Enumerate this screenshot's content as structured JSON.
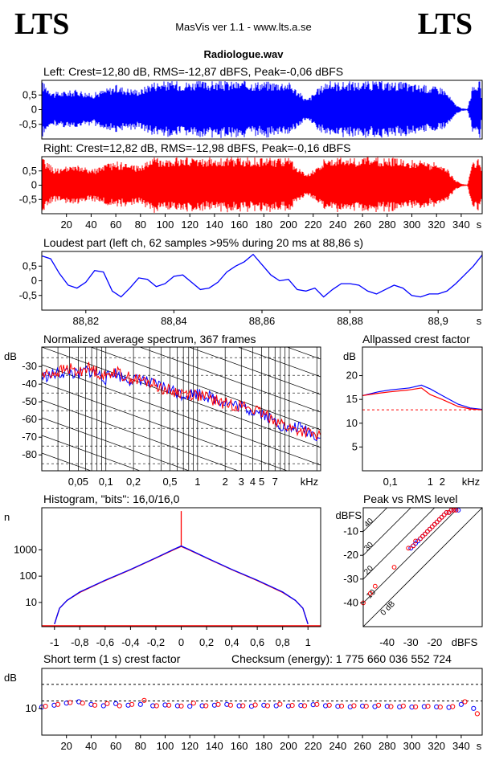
{
  "header": {
    "logo_left": "LTS",
    "logo_right": "LTS",
    "app_title": "MasVis ver 1.1 - www.lts.a.se",
    "file_name": "Radiologue.wav"
  },
  "colors": {
    "left": "#0000ff",
    "right": "#ff0000",
    "axis": "#000000",
    "grid": "#000000"
  },
  "chart_data": [
    {
      "id": "left-waveform",
      "type": "area",
      "title": "Left: Crest=12,80 dB, RMS=-12,87 dBFS, Peak=-0,06 dBFS",
      "series": [
        {
          "name": "Left",
          "color": "#0000ff"
        }
      ],
      "y_ticks": [
        "0,5",
        "0",
        "-0,5"
      ],
      "ylim": [
        -1,
        1
      ],
      "xlim": [
        0,
        357
      ],
      "envelope_t": [
        0,
        5,
        10,
        20,
        30,
        40,
        50,
        60,
        70,
        80,
        88,
        90,
        100,
        120,
        140,
        160,
        170,
        180,
        190,
        200,
        215,
        230,
        245,
        260,
        275,
        290,
        300,
        310,
        320,
        325,
        330,
        335,
        340,
        345,
        348,
        350,
        355,
        357
      ],
      "envelope_a": [
        0.98,
        0.8,
        0.6,
        0.65,
        0.7,
        0.55,
        0.7,
        0.85,
        0.75,
        0.7,
        0.95,
        0.98,
        0.98,
        0.98,
        0.98,
        0.98,
        0.98,
        0.98,
        0.97,
        0.98,
        0.35,
        0.98,
        0.97,
        0.98,
        0.98,
        0.97,
        0.9,
        0.85,
        0.8,
        0.78,
        0.5,
        0.2,
        0.05,
        0.02,
        0.6,
        0.9,
        0.98,
        0.3
      ]
    },
    {
      "id": "right-waveform",
      "type": "area",
      "title": "Right: Crest=12,82 dB, RMS=-12,98 dBFS, Peak=-0,16 dBFS",
      "series": [
        {
          "name": "Right",
          "color": "#ff0000"
        }
      ],
      "y_ticks": [
        "0,5",
        "0",
        "-0,5"
      ],
      "ylim": [
        -1,
        1
      ],
      "xlim": [
        0,
        357
      ],
      "x_ticks": [
        "20",
        "40",
        "60",
        "80",
        "100",
        "120",
        "140",
        "160",
        "180",
        "200",
        "220",
        "240",
        "260",
        "280",
        "300",
        "320",
        "340"
      ],
      "x_unit": "s",
      "envelope_t": [
        0,
        5,
        10,
        20,
        30,
        40,
        50,
        60,
        70,
        80,
        88,
        90,
        100,
        120,
        140,
        160,
        170,
        180,
        190,
        200,
        215,
        230,
        245,
        260,
        275,
        290,
        300,
        310,
        320,
        325,
        330,
        335,
        340,
        345,
        348,
        350,
        355,
        357
      ],
      "envelope_a": [
        0.98,
        0.8,
        0.6,
        0.65,
        0.7,
        0.55,
        0.7,
        0.85,
        0.75,
        0.7,
        0.95,
        0.98,
        0.98,
        0.98,
        0.98,
        0.98,
        0.98,
        0.98,
        0.97,
        0.98,
        0.35,
        0.98,
        0.97,
        0.98,
        0.98,
        0.97,
        0.9,
        0.85,
        0.8,
        0.78,
        0.5,
        0.2,
        0.05,
        0.02,
        0.6,
        0.9,
        0.98,
        0.3
      ]
    },
    {
      "id": "loudest-part",
      "type": "line",
      "title": "Loudest part (left  ch, 62 samples >95% during 20 ms at 88,86 s)",
      "y_ticks": [
        "0,5",
        "0",
        "-0,5"
      ],
      "ylim": [
        -1,
        1
      ],
      "xlim": [
        88.81,
        88.91
      ],
      "x_ticks": [
        "88,82",
        "88,84",
        "88,86",
        "88,88",
        "88,9"
      ],
      "x_unit": "s",
      "series": [
        {
          "name": "Left",
          "color": "#0000ff",
          "x": [
            88.81,
            88.812,
            88.814,
            88.816,
            88.818,
            88.82,
            88.822,
            88.824,
            88.826,
            88.828,
            88.83,
            88.832,
            88.834,
            88.836,
            88.838,
            88.84,
            88.842,
            88.844,
            88.846,
            88.848,
            88.85,
            88.852,
            88.854,
            88.856,
            88.858,
            88.86,
            88.862,
            88.864,
            88.866,
            88.868,
            88.87,
            88.872,
            88.874,
            88.876,
            88.878,
            88.88,
            88.882,
            88.884,
            88.886,
            88.888,
            88.89,
            88.892,
            88.894,
            88.896,
            88.898,
            88.9,
            88.902,
            88.904,
            88.906,
            88.908,
            88.91
          ],
          "y": [
            0.85,
            0.75,
            0.25,
            -0.15,
            -0.25,
            -0.05,
            0.35,
            0.3,
            -0.35,
            -0.55,
            -0.25,
            0.1,
            0.05,
            -0.2,
            -0.1,
            0.15,
            0.2,
            -0.05,
            -0.3,
            -0.25,
            -0.05,
            0.3,
            0.5,
            0.65,
            0.9,
            0.55,
            0.2,
            0.0,
            0.05,
            -0.3,
            -0.35,
            -0.25,
            -0.55,
            -0.3,
            -0.1,
            -0.1,
            -0.15,
            -0.35,
            -0.45,
            -0.3,
            -0.15,
            -0.25,
            -0.5,
            -0.55,
            -0.45,
            -0.45,
            -0.35,
            -0.1,
            0.2,
            0.5,
            0.88
          ]
        }
      ]
    },
    {
      "id": "average-spectrum",
      "type": "line",
      "title": "Normalized average spectrum, 367 frames",
      "ylabel": "dB",
      "y_ticks": [
        "-30",
        "-40",
        "-50",
        "-60",
        "-70",
        "-80"
      ],
      "y_tick_values": [
        -30,
        -40,
        -50,
        -60,
        -70,
        -80
      ],
      "ylim": [
        -89,
        -19
      ],
      "xlim": [
        0.02,
        22
      ],
      "x_scale": "log",
      "x_ticks": [
        "0,05",
        "0,1",
        "0,2",
        "0,5",
        "1",
        "2",
        "3",
        "4",
        "5",
        "7"
      ],
      "x_tick_values": [
        0.05,
        0.1,
        0.2,
        0.5,
        1,
        2,
        3,
        4,
        5,
        7
      ],
      "x_unit": "kHz",
      "grid": true,
      "series": [
        {
          "name": "Left",
          "color": "#0000ff",
          "x": [
            0.02,
            0.03,
            0.04,
            0.05,
            0.06,
            0.08,
            0.1,
            0.12,
            0.15,
            0.2,
            0.25,
            0.3,
            0.4,
            0.5,
            0.7,
            1,
            1.5,
            2,
            3,
            4,
            5,
            6,
            7,
            8,
            10,
            12,
            15,
            18,
            22
          ],
          "y": [
            -36,
            -34,
            -33,
            -35,
            -32,
            -34,
            -37,
            -33,
            -36,
            -38,
            -37,
            -40,
            -41,
            -43,
            -46,
            -45,
            -48,
            -50,
            -53,
            -55,
            -56,
            -59,
            -61,
            -63,
            -66,
            -64,
            -66,
            -68,
            -71
          ]
        },
        {
          "name": "Right",
          "color": "#ff0000",
          "x": [
            0.02,
            0.03,
            0.04,
            0.05,
            0.06,
            0.08,
            0.1,
            0.12,
            0.15,
            0.2,
            0.25,
            0.3,
            0.4,
            0.5,
            0.7,
            1,
            1.5,
            2,
            3,
            4,
            5,
            6,
            7,
            8,
            10,
            12,
            15,
            18,
            22
          ],
          "y": [
            -35,
            -33,
            -31,
            -34,
            -30,
            -33,
            -36,
            -32,
            -35,
            -37,
            -38,
            -39,
            -42,
            -44,
            -45,
            -46,
            -49,
            -51,
            -52,
            -54,
            -57,
            -58,
            -60,
            -62,
            -65,
            -66,
            -67,
            -69,
            -70
          ]
        }
      ]
    },
    {
      "id": "allpassed-crest",
      "type": "line",
      "title": "Allpassed crest factor",
      "ylabel": "dB",
      "y_ticks": [
        "20",
        "15",
        "10",
        "5"
      ],
      "y_tick_values": [
        20,
        15,
        10,
        5
      ],
      "ylim": [
        0,
        26
      ],
      "xlim": [
        0.02,
        20
      ],
      "x_scale": "log",
      "x_ticks": [
        "0,1",
        "1",
        "2",
        "kHz"
      ],
      "x_tick_values": [
        0.1,
        1,
        2
      ],
      "reference_level": 12.8,
      "series": [
        {
          "name": "Left",
          "color": "#0000ff",
          "x": [
            0.02,
            0.05,
            0.1,
            0.3,
            0.6,
            1,
            2,
            5,
            10,
            20
          ],
          "y": [
            15.8,
            16.6,
            17.0,
            17.4,
            18.0,
            17.2,
            15.8,
            14.0,
            13.2,
            12.9
          ]
        },
        {
          "name": "Right",
          "color": "#ff0000",
          "x": [
            0.02,
            0.05,
            0.1,
            0.3,
            0.6,
            1,
            2,
            5,
            10,
            20
          ],
          "y": [
            15.8,
            16.3,
            16.6,
            17.0,
            17.4,
            16.0,
            15.0,
            13.5,
            13.0,
            12.8
          ]
        }
      ]
    },
    {
      "id": "histogram",
      "type": "line",
      "title": "Histogram, \"bits\": 16,0/16,0",
      "ylabel": "n",
      "y_ticks": [
        "1000",
        "100",
        "10"
      ],
      "y_tick_values": [
        1000,
        100,
        10
      ],
      "y_scale": "log",
      "ylim": [
        1.2,
        40000
      ],
      "xlim": [
        -1.1,
        1.1
      ],
      "x_ticks": [
        "-1",
        "-0,8",
        "-0,6",
        "-0,4",
        "-0,2",
        "0",
        "0,2",
        "0,4",
        "0,6",
        "0,8",
        "1"
      ],
      "x_tick_values": [
        -1,
        -0.8,
        -0.6,
        -0.4,
        -0.2,
        0,
        0.2,
        0.4,
        0.6,
        0.8,
        1
      ],
      "series": [
        {
          "name": "Left",
          "color": "#0000ff",
          "x": [
            -1.0,
            -0.98,
            -0.96,
            -0.9,
            -0.8,
            -0.6,
            -0.4,
            -0.2,
            -0.05,
            0.0,
            0.05,
            0.2,
            0.4,
            0.6,
            0.8,
            0.9,
            0.96,
            0.98,
            1.0
          ],
          "y": [
            1.5,
            3,
            6,
            12,
            25,
            70,
            180,
            500,
            1100,
            1400,
            1100,
            500,
            180,
            70,
            25,
            12,
            6,
            3,
            1.5
          ]
        },
        {
          "name": "Right",
          "color": "#ff0000",
          "x": [
            -1.0,
            -0.98,
            -0.96,
            -0.9,
            -0.8,
            -0.6,
            -0.4,
            -0.2,
            -0.05,
            0.0,
            0.0,
            0.0,
            0.05,
            0.2,
            0.4,
            0.6,
            0.8,
            0.9,
            0.96,
            0.98,
            1.0
          ],
          "y": [
            1.5,
            3,
            6,
            12,
            24,
            68,
            175,
            490,
            1050,
            1350,
            30000,
            1350,
            1050,
            490,
            175,
            68,
            24,
            12,
            6,
            3,
            1.5
          ]
        }
      ]
    },
    {
      "id": "peak-vs-rms",
      "type": "scatter",
      "title": "Peak vs RMS level",
      "ylabel": "dBFS",
      "y_ticks": [
        "-10",
        "-20",
        "-30",
        "-40"
      ],
      "y_tick_values": [
        -10,
        -20,
        -30,
        -40
      ],
      "ylim": [
        -50,
        0
      ],
      "xlim": [
        -50,
        0
      ],
      "x_ticks": [
        "-40",
        "-30",
        "-20",
        "dBFS"
      ],
      "x_tick_values": [
        -40,
        -30,
        -20
      ],
      "diagonal_labels": [
        "40",
        "30",
        "20",
        "10",
        "0 dB"
      ],
      "series": [
        {
          "name": "Left",
          "color": "#0000ff",
          "x": [
            -30,
            -29,
            -28,
            -27,
            -26,
            -25,
            -24,
            -23,
            -22,
            -21,
            -20,
            -19,
            -18,
            -17,
            -16,
            -15,
            -14,
            -13,
            -12,
            -11,
            -10
          ],
          "y": [
            -17,
            -16,
            -15,
            -14,
            -13,
            -12,
            -11,
            -10,
            -9,
            -8,
            -7,
            -6,
            -5,
            -4,
            -3,
            -2,
            -2,
            -1,
            -1,
            -1,
            -1
          ]
        },
        {
          "name": "Right",
          "color": "#ff0000",
          "x": [
            -50,
            -47,
            -45,
            -37,
            -31,
            -29,
            -28,
            -26,
            -25,
            -24,
            -23,
            -22,
            -21,
            -20,
            -19,
            -18,
            -17,
            -16,
            -15,
            -14,
            -13,
            -12,
            -11
          ],
          "y": [
            -40,
            -36,
            -33,
            -25,
            -17,
            -16,
            -14,
            -13,
            -12,
            -11,
            -10,
            -9,
            -8,
            -7,
            -6,
            -5,
            -4,
            -3,
            -2,
            -2,
            -1,
            -1,
            -1
          ]
        }
      ]
    },
    {
      "id": "short-term-crest",
      "type": "scatter",
      "title": "Short term (1 s) crest factor",
      "annotation": "Checksum (energy):  1 775 660 036 552 724",
      "ylabel": "dB",
      "y_ticks": [
        "10"
      ],
      "y_tick_values": [
        10
      ],
      "ylim": [
        0,
        25
      ],
      "xlim": [
        0,
        357
      ],
      "x_ticks": [
        "20",
        "40",
        "60",
        "80",
        "100",
        "120",
        "140",
        "160",
        "180",
        "200",
        "220",
        "240",
        "260",
        "280",
        "300",
        "320",
        "340"
      ],
      "x_unit": "s",
      "reference_levels": [
        12.8,
        19
      ],
      "series": [
        {
          "name": "Left",
          "color": "#0000ff",
          "x": [
            0,
            10,
            20,
            30,
            40,
            50,
            60,
            70,
            80,
            90,
            100,
            110,
            120,
            130,
            140,
            150,
            160,
            170,
            180,
            190,
            200,
            210,
            220,
            230,
            240,
            250,
            260,
            270,
            280,
            290,
            300,
            310,
            320,
            330,
            340,
            350
          ],
          "y": [
            10.5,
            11.2,
            12.0,
            12.5,
            11.5,
            11.0,
            11.8,
            11.2,
            11.5,
            11.0,
            11.3,
            11.0,
            10.8,
            11.0,
            11.2,
            11.5,
            11.0,
            10.8,
            11.2,
            11.0,
            10.9,
            11.1,
            11.4,
            11.0,
            10.8,
            10.6,
            10.9,
            10.7,
            10.8,
            10.6,
            10.5,
            10.7,
            10.6,
            10.4,
            11.5,
            10.0
          ]
        },
        {
          "name": "Right",
          "color": "#ff0000",
          "x": [
            3,
            13,
            23,
            33,
            43,
            53,
            63,
            73,
            83,
            93,
            103,
            113,
            123,
            133,
            143,
            153,
            163,
            173,
            183,
            193,
            203,
            213,
            223,
            233,
            243,
            253,
            263,
            273,
            283,
            293,
            303,
            313,
            323,
            333,
            343,
            353
          ],
          "y": [
            10.8,
            11.5,
            12.2,
            12.0,
            11.2,
            11.8,
            11.0,
            11.5,
            13.0,
            11.0,
            11.2,
            10.9,
            12.0,
            11.0,
            11.5,
            11.2,
            11.0,
            11.3,
            11.0,
            11.6,
            11.1,
            11.0,
            11.5,
            11.2,
            10.9,
            11.0,
            10.8,
            11.2,
            10.7,
            10.9,
            10.6,
            10.8,
            10.5,
            10.7,
            12.5,
            8.0
          ]
        }
      ]
    }
  ]
}
